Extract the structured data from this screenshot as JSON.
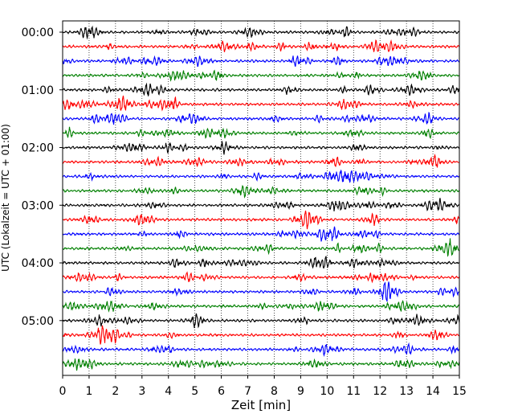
{
  "chart_data": {
    "type": "line",
    "title": "",
    "xlabel": "Zeit  [min]",
    "ylabel": "UTC (Lokalzeit = UTC + 01:00)",
    "xlim": [
      0,
      15
    ],
    "x_ticks": [
      "0",
      "1",
      "2",
      "3",
      "4",
      "5",
      "6",
      "7",
      "8",
      "9",
      "10",
      "11",
      "12",
      "13",
      "14",
      "15"
    ],
    "y_tick_labels": [
      "00:00",
      "01:00",
      "02:00",
      "03:00",
      "04:00",
      "05:00"
    ],
    "trace_count": 24,
    "trace_interval_min": 15,
    "grid": "vertical-dotted",
    "colors": [
      "#000000",
      "#ff0000",
      "#0000ff",
      "#008000"
    ]
  }
}
